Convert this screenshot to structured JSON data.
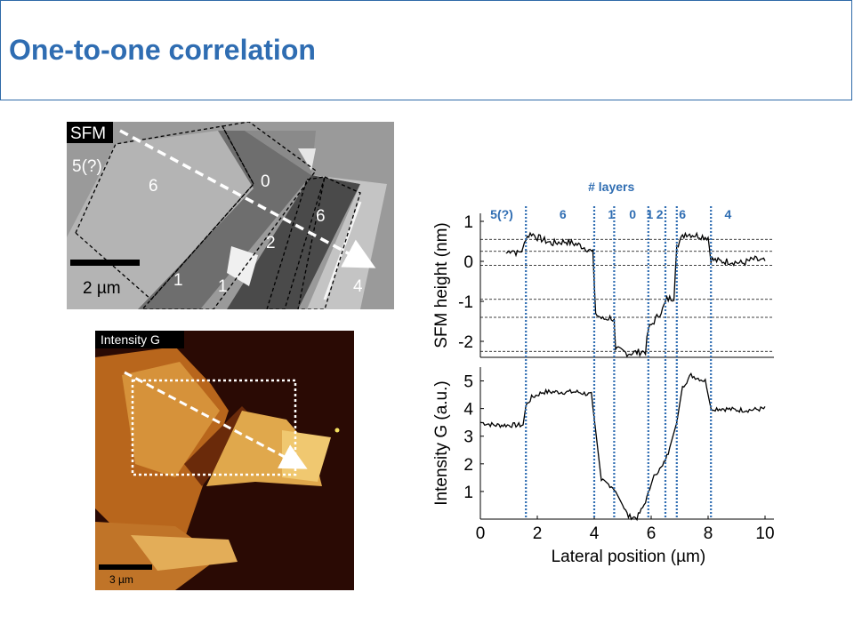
{
  "slide": {
    "title": "One-to-one correlation"
  },
  "sfm_image": {
    "tag": "SFM",
    "scale_label": "2 µm",
    "region_labels": [
      "5(?)",
      "6",
      "0",
      "6",
      "2",
      "1",
      "1",
      "4"
    ]
  },
  "raman_image": {
    "tag": "Intensity G",
    "scale_label": "3 µm"
  },
  "chart_data": {
    "type": "line",
    "layers_title": "# layers",
    "layer_labels": [
      {
        "label": "5(?)",
        "x": 0.75
      },
      {
        "label": "6",
        "x": 2.9
      },
      {
        "label": "1",
        "x": 4.6
      },
      {
        "label": "0",
        "x": 5.35
      },
      {
        "label": "1",
        "x": 5.95
      },
      {
        "label": "2",
        "x": 6.3
      },
      {
        "label": "6",
        "x": 7.1
      },
      {
        "label": "4",
        "x": 8.7
      }
    ],
    "boundaries_um": [
      1.6,
      4.0,
      4.7,
      5.9,
      6.5,
      6.9,
      8.1
    ],
    "xlabel": "Lateral position (µm)",
    "xlim": [
      0,
      10
    ],
    "xticks": [
      0,
      2,
      4,
      6,
      8,
      10
    ],
    "top_panel": {
      "ylabel": "SFM height (nm)",
      "ylim": [
        -2.4,
        1.2
      ],
      "yticks": [
        1,
        0,
        -1,
        -2
      ],
      "reference_levels_nm": [
        0.55,
        0.25,
        -0.1,
        -0.95,
        -1.4,
        -2.25
      ],
      "profile": [
        [
          0.9,
          0.2
        ],
        [
          1.1,
          0.3
        ],
        [
          1.3,
          0.2
        ],
        [
          1.5,
          0.3
        ],
        [
          1.6,
          0.6
        ],
        [
          1.8,
          0.7
        ],
        [
          2.0,
          0.6
        ],
        [
          2.5,
          0.45
        ],
        [
          3.0,
          0.5
        ],
        [
          3.5,
          0.4
        ],
        [
          3.8,
          0.3
        ],
        [
          3.95,
          0.2
        ],
        [
          4.05,
          -1.3
        ],
        [
          4.3,
          -1.45
        ],
        [
          4.6,
          -1.4
        ],
        [
          4.7,
          -1.5
        ],
        [
          4.75,
          -2.2
        ],
        [
          5.2,
          -2.3
        ],
        [
          5.8,
          -2.25
        ],
        [
          5.9,
          -1.7
        ],
        [
          6.2,
          -1.4
        ],
        [
          6.4,
          -1.2
        ],
        [
          6.55,
          -0.95
        ],
        [
          6.8,
          -0.9
        ],
        [
          6.9,
          0.4
        ],
        [
          7.2,
          0.7
        ],
        [
          7.6,
          0.65
        ],
        [
          8.0,
          0.6
        ],
        [
          8.1,
          0.05
        ],
        [
          8.4,
          0.0
        ],
        [
          8.8,
          0.0
        ],
        [
          9.2,
          -0.05
        ],
        [
          9.6,
          0.05
        ],
        [
          10.0,
          0.0
        ]
      ]
    },
    "bottom_panel": {
      "ylabel": "Intensity G (a.u.)",
      "ylim": [
        0,
        5.5
      ],
      "yticks": [
        1,
        2,
        3,
        4,
        5
      ],
      "profile": [
        [
          0,
          3.5
        ],
        [
          0.5,
          3.4
        ],
        [
          1.0,
          3.4
        ],
        [
          1.5,
          3.4
        ],
        [
          1.6,
          4.1
        ],
        [
          1.8,
          4.4
        ],
        [
          2.2,
          4.6
        ],
        [
          2.8,
          4.6
        ],
        [
          3.4,
          4.6
        ],
        [
          3.9,
          4.5
        ],
        [
          4.05,
          3.2
        ],
        [
          4.25,
          1.4
        ],
        [
          4.6,
          1.2
        ],
        [
          4.7,
          1.1
        ],
        [
          5.0,
          0.5
        ],
        [
          5.2,
          0.1
        ],
        [
          5.5,
          0.05
        ],
        [
          5.7,
          0.4
        ],
        [
          5.9,
          0.9
        ],
        [
          6.1,
          1.6
        ],
        [
          6.4,
          1.9
        ],
        [
          6.6,
          2.4
        ],
        [
          6.9,
          3.5
        ],
        [
          7.1,
          4.8
        ],
        [
          7.4,
          5.2
        ],
        [
          7.9,
          5.0
        ],
        [
          8.1,
          4.0
        ],
        [
          8.5,
          4.0
        ],
        [
          9.0,
          3.95
        ],
        [
          9.5,
          3.95
        ],
        [
          10.0,
          4.0
        ]
      ]
    }
  }
}
